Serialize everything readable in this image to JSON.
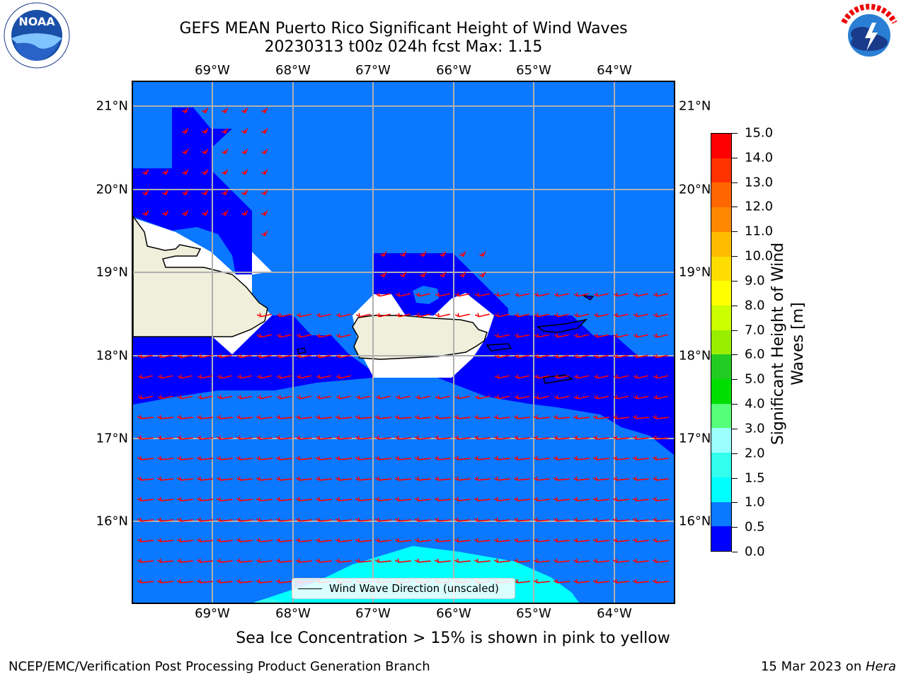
{
  "header": {
    "title_line1": "GEFS MEAN Puerto Rico Significant Height of Wind Waves",
    "title_line2": "20230313 t00z 024h fcst   Max: 1.15"
  },
  "map": {
    "lon_ticks": [
      "69°W",
      "68°W",
      "67°W",
      "66°W",
      "65°W",
      "64°W"
    ],
    "lat_ticks": [
      "21°N",
      "20°N",
      "19°N",
      "18°N",
      "17°N",
      "16°N"
    ],
    "legend_label": "Wind Wave Direction (unscaled)",
    "land_color": "#efefdb",
    "arrow_color": "#ff0000"
  },
  "colorbar": {
    "title": "Significant Height of Wind Waves [m]",
    "title_line1": "Significant Height of Wind",
    "title_line2": "Waves [m]",
    "tick_labels": [
      "0.0",
      "0.5",
      "1.0",
      "1.5",
      "2.0",
      "3.0",
      "4.0",
      "5.0",
      "6.0",
      "7.0",
      "8.0",
      "9.0",
      "10.0",
      "11.0",
      "12.0",
      "13.0",
      "14.0",
      "15.0"
    ],
    "colors": [
      "#0000ff",
      "#0a78ff",
      "#00ffff",
      "#33ffee",
      "#99ffff",
      "#55ff77",
      "#00dd00",
      "#22cc22",
      "#99ee00",
      "#ccff00",
      "#ffff00",
      "#ffdd00",
      "#ffbb00",
      "#ff8800",
      "#ff6600",
      "#ff3300",
      "#ff0000"
    ]
  },
  "footer": {
    "ice_note": "Sea Ice Concentration > 15% is shown in pink to yellow",
    "credit": "NCEP/EMC/Verification Post Processing Product Generation Branch",
    "date_prefix": "15 Mar 2023 on ",
    "machine": "Hera"
  },
  "logos": {
    "left": "NOAA",
    "right": "NATIONAL WEATHER SERVICE"
  }
}
